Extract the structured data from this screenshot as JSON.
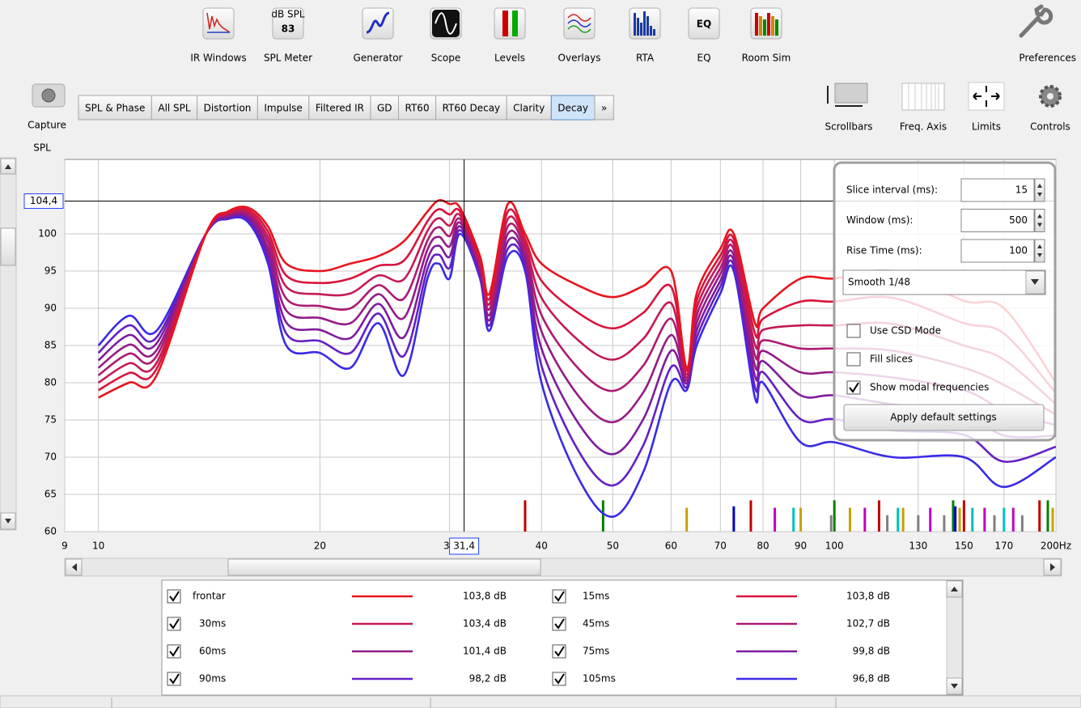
{
  "toolbar": [
    "IR Windows",
    "SPL Meter",
    "Generator",
    "Scope",
    "Levels",
    "Overlays",
    "RTA",
    "EQ",
    "Room Sim"
  ],
  "spl_meter": {
    "unit": "dB SPL",
    "value": 83
  },
  "preferences": "Preferences",
  "capture": "Capture",
  "tabs": [
    "SPL & Phase",
    "All SPL",
    "Distortion",
    "Impulse",
    "Filtered IR",
    "GD",
    "RT60",
    "RT60 Decay",
    "Clarity",
    "Decay",
    "»"
  ],
  "selected_tab": 9,
  "view_buttons": [
    "Scrollbars",
    "Freq. Axis",
    "Limits",
    "Controls"
  ],
  "controls": {
    "fields": [
      {
        "label": "Slice interval (ms):",
        "value": 15
      },
      {
        "label": "Window (ms):",
        "value": 500
      },
      {
        "label": "Rise Time (ms):",
        "value": 100
      }
    ],
    "smoothing": "Smooth 1/48",
    "checkboxes": [
      {
        "label": "Use CSD Mode",
        "checked": false
      },
      {
        "label": "Fill slices",
        "checked": false
      },
      {
        "label": "Show modal frequencies",
        "checked": true
      }
    ],
    "button": "Apply default settings"
  },
  "chart_data": {
    "type": "line",
    "y_label": "SPL",
    "log_x": true,
    "grid": true,
    "xlim": [
      9,
      200
    ],
    "ylim": [
      60,
      110
    ],
    "xticks": [
      9,
      10,
      20,
      30,
      40,
      50,
      60,
      70,
      80,
      90,
      100,
      130,
      150,
      170,
      {
        "value": 200,
        "label": "200Hz"
      }
    ],
    "yticks": [
      60,
      65,
      70,
      75,
      80,
      85,
      90,
      95,
      100
    ],
    "cursor": {
      "x": 31.4,
      "x_label": "31,4",
      "y": 104.4,
      "y_label": "104,4"
    },
    "x": [
      10,
      11,
      12,
      14,
      15,
      16,
      17,
      18,
      20,
      22,
      24,
      26,
      28,
      29,
      30,
      31,
      33,
      34,
      36,
      38,
      40,
      45,
      50,
      55,
      60,
      63,
      65,
      70,
      73,
      78,
      80,
      90,
      100,
      120,
      150,
      170,
      200
    ],
    "series": [
      {
        "name": "frontar",
        "color": "#e8141e",
        "legend_value": "103,8 dB",
        "values": [
          78,
          80,
          81,
          100,
          103,
          103.5,
          101,
          96,
          95,
          96,
          97,
          99,
          103,
          104.5,
          104,
          103.5,
          97,
          92,
          104,
          100,
          96,
          93,
          91.5,
          93,
          95,
          82,
          92,
          98,
          100,
          88,
          90,
          94,
          94,
          95,
          91,
          90,
          80
        ]
      },
      {
        "name": "15ms",
        "color": "#d8143c",
        "legend_value": "103,8 dB",
        "values": [
          79,
          81.3,
          81.9,
          100,
          102.9,
          103.2,
          100.3,
          94.4,
          93.4,
          94,
          95.7,
          96.4,
          101.7,
          103.3,
          102.6,
          103,
          96.6,
          91.3,
          103,
          99.3,
          93.7,
          89.3,
          87.3,
          89.4,
          92.9,
          81.6,
          91,
          97.1,
          99.3,
          86.6,
          88.6,
          90.9,
          90.9,
          91.4,
          88,
          86.6,
          78.6
        ]
      },
      {
        "name": "30ms",
        "color": "#c41a56",
        "legend_value": "103,4 dB",
        "values": [
          80,
          82.6,
          82.7,
          100,
          102.7,
          102.9,
          99.6,
          92.9,
          91.9,
          92,
          94.4,
          93.9,
          100.4,
          102.1,
          101.1,
          102.5,
          96.1,
          90.6,
          102,
          98.6,
          91.4,
          85.6,
          83.1,
          85.9,
          90.7,
          81.1,
          90,
          96.3,
          98.6,
          85.1,
          87.1,
          87.7,
          87.7,
          87.9,
          85,
          83.1,
          77.1
        ]
      },
      {
        "name": "45ms",
        "color": "#ac1a72",
        "legend_value": "102,7 dB",
        "values": [
          81,
          83.9,
          83.6,
          100,
          102.6,
          102.6,
          98.9,
          91.3,
          90.3,
          90,
          93.1,
          91.3,
          99.1,
          100.9,
          99.7,
          102,
          95.7,
          89.9,
          101,
          97.9,
          89.1,
          81.8,
          78.9,
          82.3,
          88.6,
          80.7,
          89,
          95.4,
          97.9,
          83.7,
          85.7,
          84.6,
          84.6,
          84.3,
          82,
          79.7,
          75.7
        ]
      },
      {
        "name": "60ms",
        "color": "#941c86",
        "legend_value": "101,4 dB",
        "values": [
          82,
          85.1,
          84.4,
          100,
          102.4,
          102.4,
          98.1,
          89.7,
          88.7,
          88,
          91.9,
          88.7,
          97.9,
          99.6,
          98.3,
          101.5,
          95.3,
          89.1,
          100,
          97.1,
          86.9,
          78.1,
          74.7,
          78.7,
          86.4,
          80.3,
          88,
          94.6,
          97.1,
          82.3,
          84.3,
          81.4,
          81.4,
          80.7,
          79,
          76.3,
          74.3
        ]
      },
      {
        "name": "75ms",
        "color": "#7e1c9c",
        "legend_value": "99,8 dB",
        "values": [
          83,
          86.4,
          85.3,
          100,
          102.3,
          102.1,
          97.4,
          88.1,
          87.1,
          86,
          90.6,
          86.1,
          96.6,
          98.4,
          96.9,
          101,
          94.9,
          88.4,
          99,
          96.4,
          84.6,
          74.4,
          70.4,
          75.1,
          84.3,
          79.9,
          87,
          93.7,
          96.4,
          80.9,
          82.9,
          78.3,
          78.3,
          77.1,
          76,
          72.9,
          72.9
        ]
      },
      {
        "name": "90ms",
        "color": "#6420c4",
        "legend_value": "98,2 dB",
        "values": [
          84,
          87.7,
          86.1,
          100,
          102.1,
          101.8,
          96.7,
          86.6,
          85.6,
          84,
          89.3,
          83.6,
          95.3,
          97.2,
          95.4,
          100.5,
          94.4,
          87.7,
          98,
          95.7,
          82.3,
          70.7,
          66.2,
          71.6,
          82.1,
          79.4,
          86,
          92.9,
          95.7,
          79.4,
          81.4,
          75.1,
          75.1,
          73.6,
          73,
          69.4,
          71.4
        ]
      },
      {
        "name": "105ms",
        "color": "#3a2ae6",
        "legend_value": "96,8 dB",
        "values": [
          85,
          89,
          87,
          100,
          102,
          101.5,
          96,
          85,
          84,
          82,
          88,
          81,
          94,
          96,
          94,
          100,
          94,
          87,
          97,
          95,
          80,
          67,
          62,
          68,
          80,
          79,
          85,
          92,
          95,
          78,
          80,
          72,
          72,
          70,
          70,
          66,
          70
        ]
      }
    ],
    "modal_frequencies": [
      {
        "x": 38,
        "spl": 64.2,
        "color": "#c00000"
      },
      {
        "x": 48.5,
        "spl": 64.2,
        "color": "#008000"
      },
      {
        "x": 63,
        "spl": 63.2,
        "color": "#c8a000"
      },
      {
        "x": 73,
        "spl": 63.4,
        "color": "#0000c0"
      },
      {
        "x": 77,
        "spl": 64.2,
        "color": "#c00000"
      },
      {
        "x": 83,
        "spl": 63.2,
        "color": "#c000c0"
      },
      {
        "x": 88,
        "spl": 63.2,
        "color": "#00c0c0"
      },
      {
        "x": 90,
        "spl": 63.2,
        "color": "#c8a000"
      },
      {
        "x": 99,
        "spl": 62.2,
        "color": "#808080"
      },
      {
        "x": 100,
        "spl": 64.2,
        "color": "#008000"
      },
      {
        "x": 105,
        "spl": 63.2,
        "color": "#c8a000"
      },
      {
        "x": 110,
        "spl": 63.2,
        "color": "#c000c0"
      },
      {
        "x": 115,
        "spl": 64.2,
        "color": "#c00000"
      },
      {
        "x": 118,
        "spl": 62.2,
        "color": "#808080"
      },
      {
        "x": 122,
        "spl": 63.2,
        "color": "#00c0c0"
      },
      {
        "x": 124,
        "spl": 63.2,
        "color": "#c8a000"
      },
      {
        "x": 130,
        "spl": 62.2,
        "color": "#808080"
      },
      {
        "x": 135,
        "spl": 63.2,
        "color": "#c000c0"
      },
      {
        "x": 141,
        "spl": 62.2,
        "color": "#808080"
      },
      {
        "x": 145,
        "spl": 64.2,
        "color": "#008000"
      },
      {
        "x": 146,
        "spl": 63.4,
        "color": "#0000c0"
      },
      {
        "x": 148,
        "spl": 63.2,
        "color": "#c8a000"
      },
      {
        "x": 150,
        "spl": 64.2,
        "color": "#c00000"
      },
      {
        "x": 154,
        "spl": 63.2,
        "color": "#00c0c0"
      },
      {
        "x": 160,
        "spl": 63.2,
        "color": "#c000c0"
      },
      {
        "x": 165,
        "spl": 62.2,
        "color": "#808080"
      },
      {
        "x": 170,
        "spl": 63.2,
        "color": "#00c0c0"
      },
      {
        "x": 175,
        "spl": 63.2,
        "color": "#c000c0"
      },
      {
        "x": 180,
        "spl": 62.2,
        "color": "#808080"
      },
      {
        "x": 190,
        "spl": 64.2,
        "color": "#c00000"
      },
      {
        "x": 195,
        "spl": 64.2,
        "color": "#008000"
      },
      {
        "x": 198,
        "spl": 63.2,
        "color": "#c8a000"
      }
    ]
  }
}
